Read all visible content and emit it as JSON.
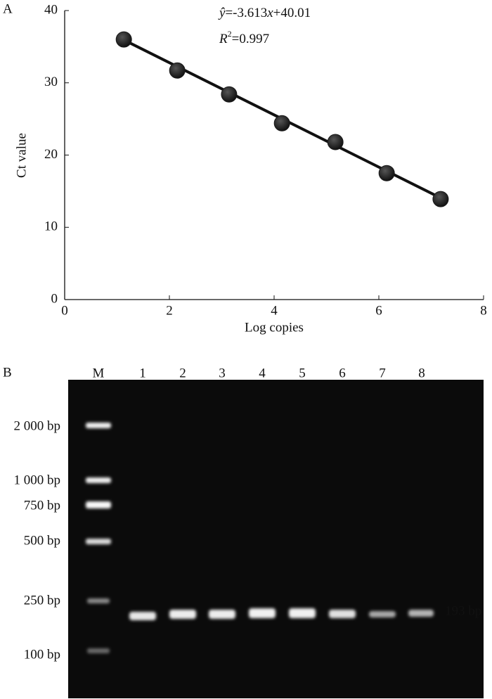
{
  "chart_data": {
    "type": "scatter",
    "panel_label": "A",
    "x": [
      1.13,
      2.15,
      3.14,
      4.15,
      5.17,
      6.15,
      7.18
    ],
    "values": [
      36.0,
      31.7,
      28.4,
      24.4,
      21.8,
      17.5,
      13.9
    ],
    "color": "#1a1a1a",
    "fit": {
      "slope": -3.613,
      "intercept": 40.01
    },
    "equation_parts": [
      "ŷ",
      "=-3.613",
      "x",
      "+40.01"
    ],
    "r2_parts": [
      "R",
      "2",
      "=0.997"
    ],
    "x_label": "Log copies",
    "y_label": "Ct value",
    "xlim": [
      0,
      8
    ],
    "xticks": [
      0,
      2,
      4,
      6,
      8
    ],
    "ylim": [
      0,
      40
    ],
    "yticks": [
      0,
      10,
      20,
      30,
      40
    ],
    "grid": false
  },
  "panel_b": {
    "label": "B",
    "lanes": [
      "M",
      "1",
      "2",
      "3",
      "4",
      "5",
      "6",
      "7",
      "8"
    ],
    "ladder": [
      "2 000 bp",
      "1 000 bp",
      "750 bp",
      "500 bp",
      "250 bp",
      "100 bp"
    ],
    "product": "193 bp"
  }
}
